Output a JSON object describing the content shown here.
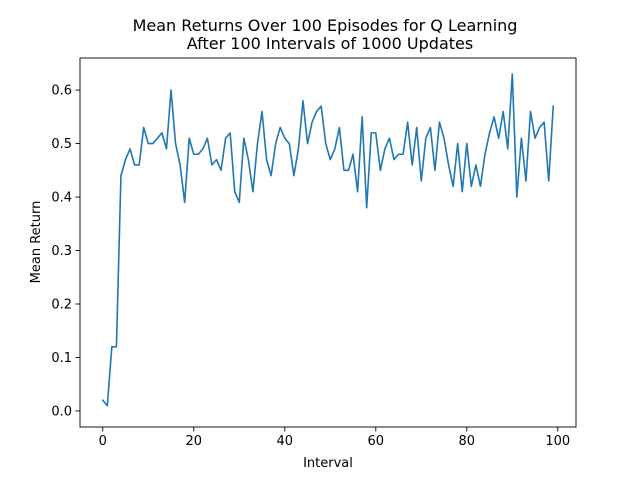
{
  "chart_data": {
    "type": "line",
    "title": "Mean Returns Over 100 Episodes for Q Learning",
    "subtitle": "After 100 Intervals of 1000 Updates",
    "xlabel": "Interval",
    "ylabel": "Mean Return",
    "xlim": [
      -5,
      104
    ],
    "ylim": [
      -0.03,
      0.66
    ],
    "xticks": [
      0,
      20,
      40,
      60,
      80,
      100
    ],
    "xtick_labels": [
      "0",
      "20",
      "40",
      "60",
      "80",
      "100"
    ],
    "yticks": [
      0.0,
      0.1,
      0.2,
      0.3,
      0.4,
      0.5,
      0.6
    ],
    "ytick_labels": [
      "0.0",
      "0.1",
      "0.2",
      "0.3",
      "0.4",
      "0.5",
      "0.6"
    ],
    "grid": false,
    "line_color": "#1f77b4",
    "series": [
      {
        "x": [
          0,
          1,
          2,
          3,
          4,
          5,
          6,
          7,
          8,
          9,
          10,
          11,
          12,
          13,
          14,
          15,
          16,
          17,
          18,
          19,
          20,
          21,
          22,
          23,
          24,
          25,
          26,
          27,
          28,
          29,
          30,
          31,
          32,
          33,
          34,
          35,
          36,
          37,
          38,
          39,
          40,
          41,
          42,
          43,
          44,
          45,
          46,
          47,
          48,
          49,
          50,
          51,
          52,
          53,
          54,
          55,
          56,
          57,
          58,
          59,
          60,
          61,
          62,
          63,
          64,
          65,
          66,
          67,
          68,
          69,
          70,
          71,
          72,
          73,
          74,
          75,
          76,
          77,
          78,
          79,
          80,
          81,
          82,
          83,
          84,
          85,
          86,
          87,
          88,
          89,
          90,
          91,
          92,
          93,
          94,
          95,
          96,
          97,
          98,
          99
        ],
        "values": [
          0.02,
          0.01,
          0.12,
          0.12,
          0.44,
          0.47,
          0.49,
          0.46,
          0.46,
          0.53,
          0.5,
          0.5,
          0.51,
          0.52,
          0.49,
          0.6,
          0.5,
          0.46,
          0.39,
          0.51,
          0.48,
          0.48,
          0.49,
          0.51,
          0.46,
          0.47,
          0.45,
          0.51,
          0.52,
          0.41,
          0.39,
          0.51,
          0.47,
          0.41,
          0.5,
          0.56,
          0.47,
          0.44,
          0.5,
          0.53,
          0.51,
          0.5,
          0.44,
          0.49,
          0.58,
          0.5,
          0.54,
          0.56,
          0.57,
          0.5,
          0.47,
          0.49,
          0.53,
          0.45,
          0.45,
          0.48,
          0.41,
          0.55,
          0.38,
          0.52,
          0.52,
          0.45,
          0.49,
          0.51,
          0.47,
          0.48,
          0.48,
          0.54,
          0.46,
          0.53,
          0.43,
          0.51,
          0.53,
          0.45,
          0.54,
          0.51,
          0.46,
          0.42,
          0.5,
          0.41,
          0.5,
          0.42,
          0.46,
          0.42,
          0.48,
          0.52,
          0.55,
          0.51,
          0.56,
          0.49,
          0.63,
          0.4,
          0.51,
          0.43,
          0.56,
          0.51,
          0.53,
          0.54,
          0.43,
          0.57
        ]
      }
    ]
  }
}
